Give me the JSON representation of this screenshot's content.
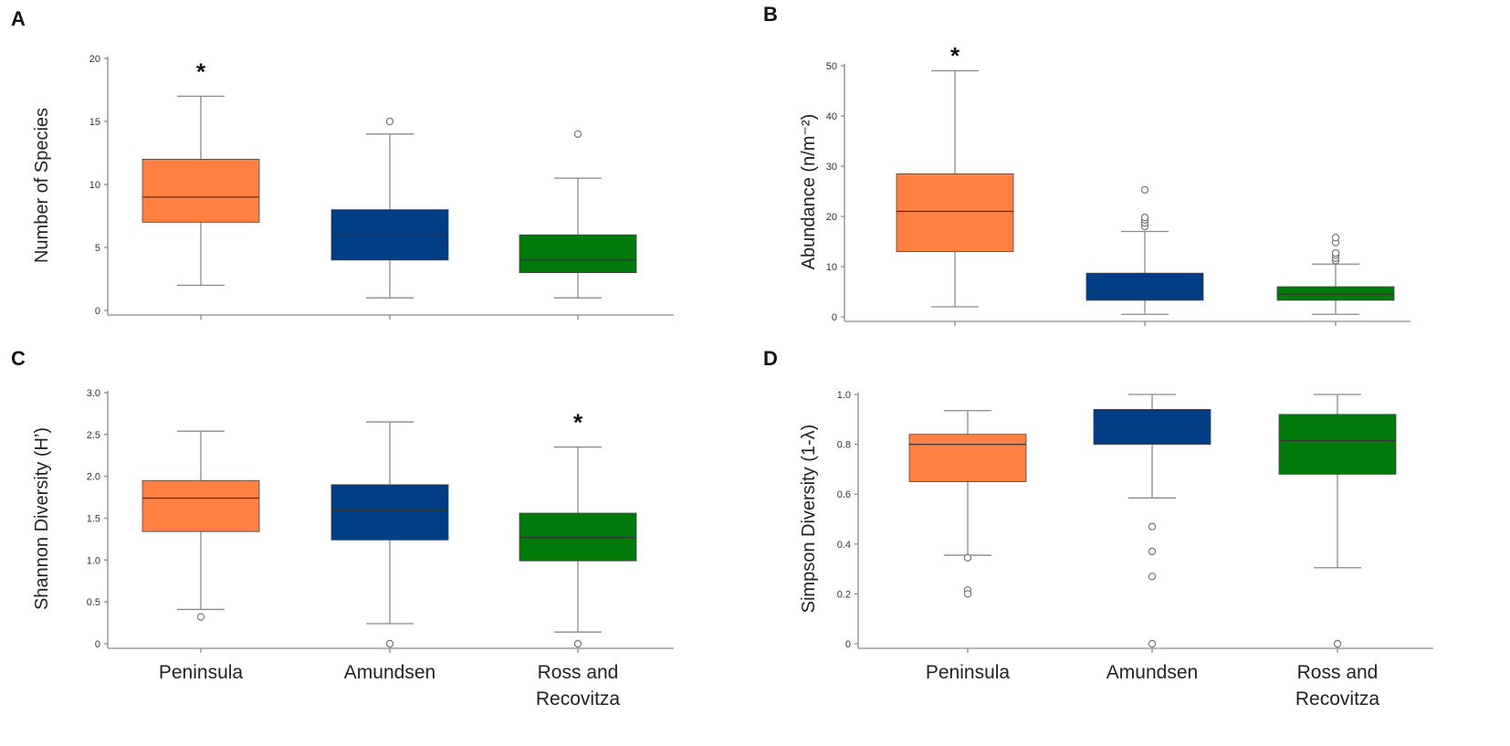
{
  "figure": {
    "categories": [
      "Peninsula",
      "Amundsen",
      "Ross and Recovitza"
    ],
    "category_lines": [
      [
        "Peninsula"
      ],
      [
        "Amundsen"
      ],
      [
        "Ross and",
        "Recovitza"
      ]
    ],
    "colors": [
      "#FF8040",
      "#003D87",
      "#007A0A"
    ]
  },
  "chart_data": [
    {
      "panel": "A",
      "type": "box",
      "ylabel": "Number of Species",
      "ylim": [
        0,
        20
      ],
      "yticks": [
        "0",
        "5",
        "10",
        "15",
        "20"
      ],
      "significance": {
        "category": "Peninsula",
        "mark": "*"
      },
      "series": [
        {
          "name": "Peninsula",
          "min": 2,
          "q1": 7,
          "median": 9,
          "q3": 12,
          "max": 17,
          "outliers": []
        },
        {
          "name": "Amundsen",
          "min": 1,
          "q1": 4,
          "median": 6,
          "q3": 8,
          "max": 14,
          "outliers": [
            15
          ]
        },
        {
          "name": "Ross and Recovitza",
          "min": 1,
          "q1": 3,
          "median": 4,
          "q3": 6,
          "max": 10.5,
          "outliers": [
            14
          ]
        }
      ]
    },
    {
      "panel": "B",
      "type": "box",
      "ylabel": "Abundance (n/m⁻²)",
      "ylim": [
        0,
        50
      ],
      "yticks": [
        "0",
        "10",
        "20",
        "30",
        "40",
        "50"
      ],
      "significance": {
        "category": "Peninsula",
        "mark": "*"
      },
      "series": [
        {
          "name": "Peninsula",
          "min": 2,
          "q1": 13,
          "median": 21,
          "q3": 28.5,
          "max": 49,
          "outliers": []
        },
        {
          "name": "Amundsen",
          "min": 0.5,
          "q1": 3.3,
          "median": 5,
          "q3": 8.7,
          "max": 17,
          "outliers": [
            18,
            18.7,
            19.3,
            19.8,
            25.3
          ]
        },
        {
          "name": "Ross and Recovitza",
          "min": 0.5,
          "q1": 3.3,
          "median": 4.5,
          "q3": 6,
          "max": 10.5,
          "outliers": [
            11.2,
            11.7,
            12.3,
            12.7,
            14.8,
            15.8
          ]
        }
      ]
    },
    {
      "panel": "C",
      "type": "box",
      "ylabel": "Shannon Diversity (H’)",
      "ylim": [
        0,
        3.0
      ],
      "yticks": [
        "0",
        "0.5",
        "1.0",
        "1.5",
        "2.0",
        "2.5",
        "3.0"
      ],
      "significance": {
        "category": "Ross and Recovitza",
        "mark": "*"
      },
      "series": [
        {
          "name": "Peninsula",
          "min": 0.41,
          "q1": 1.34,
          "median": 1.74,
          "q3": 1.95,
          "max": 2.54,
          "outliers": [
            0.32
          ]
        },
        {
          "name": "Amundsen",
          "min": 0.24,
          "q1": 1.24,
          "median": 1.6,
          "q3": 1.9,
          "max": 2.65,
          "outliers": [
            0
          ]
        },
        {
          "name": "Ross and Recovitza",
          "min": 0.14,
          "q1": 0.99,
          "median": 1.27,
          "q3": 1.56,
          "max": 2.35,
          "outliers": [
            0
          ]
        }
      ]
    },
    {
      "panel": "D",
      "type": "box",
      "ylabel": "Simpson Diversity (1-λ)",
      "ylim": [
        0,
        1.0
      ],
      "yticks": [
        "0",
        "0.2",
        "0.4",
        "0.6",
        "0.8",
        "1.0"
      ],
      "significance": null,
      "series": [
        {
          "name": "Peninsula",
          "min": 0.355,
          "q1": 0.65,
          "median": 0.8,
          "q3": 0.84,
          "max": 0.935,
          "outliers": [
            0.345,
            0.215,
            0.2
          ]
        },
        {
          "name": "Amundsen",
          "min": 0.585,
          "q1": 0.8,
          "median": 0.87,
          "q3": 0.94,
          "max": 1.0,
          "outliers": [
            0.47,
            0.37,
            0.27,
            0
          ]
        },
        {
          "name": "Ross and Recovitza",
          "min": 0.305,
          "q1": 0.68,
          "median": 0.815,
          "q3": 0.92,
          "max": 1.0,
          "outliers": [
            0
          ]
        }
      ]
    }
  ]
}
